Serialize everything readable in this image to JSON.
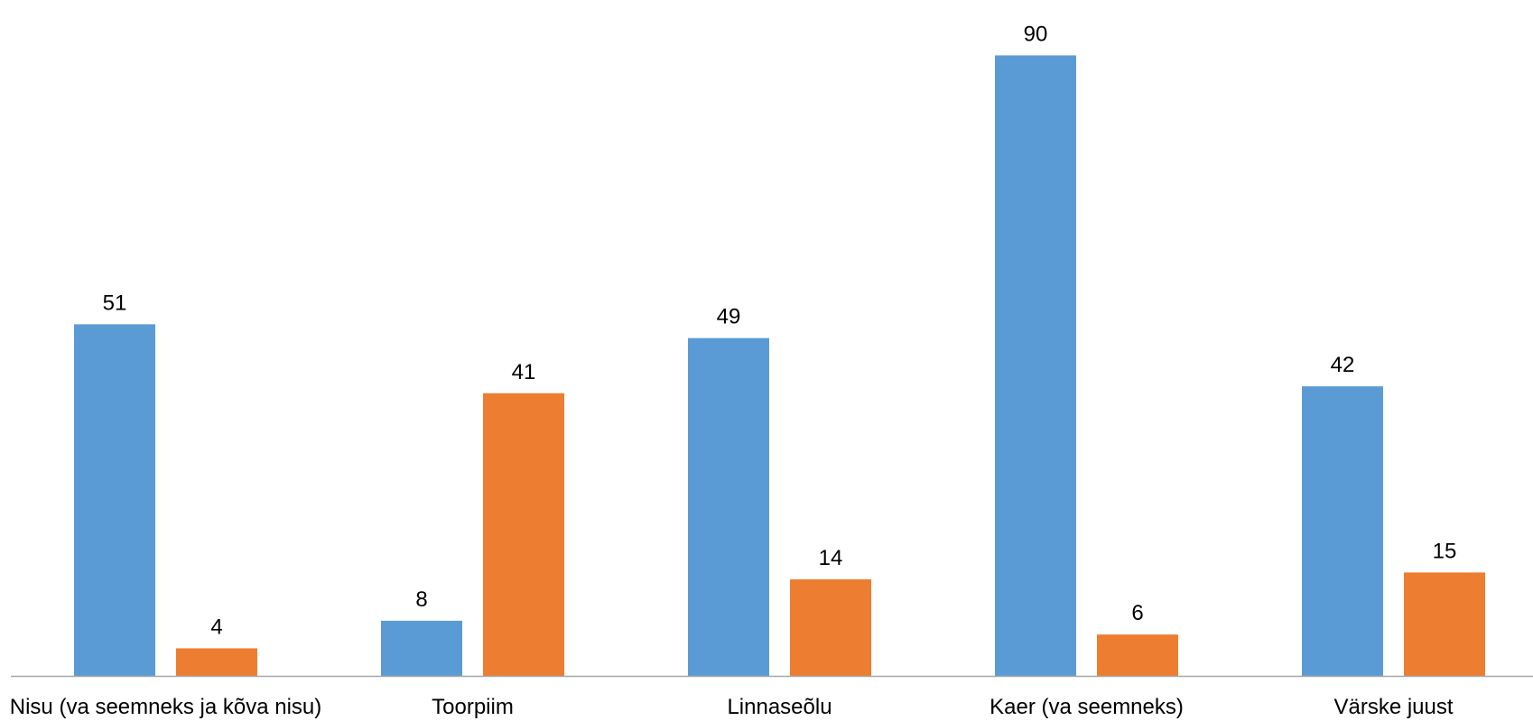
{
  "chart_data": {
    "type": "bar",
    "title": "",
    "xlabel": "",
    "ylabel": "",
    "categories": [
      "Nisu (va seemneks ja kõva nisu)",
      "Toorpiim",
      "Linnaseõlu",
      "Kaer (va seemneks)",
      "Värske juust"
    ],
    "series": [
      {
        "values": [
          51,
          8,
          49,
          90,
          42
        ],
        "color": "#5B9BD5"
      },
      {
        "values": [
          4,
          41,
          14,
          6,
          15
        ],
        "color": "#ED7D31"
      }
    ],
    "ylim": [
      0,
      90
    ],
    "grid": false,
    "legend": "none",
    "data_labels": true
  }
}
